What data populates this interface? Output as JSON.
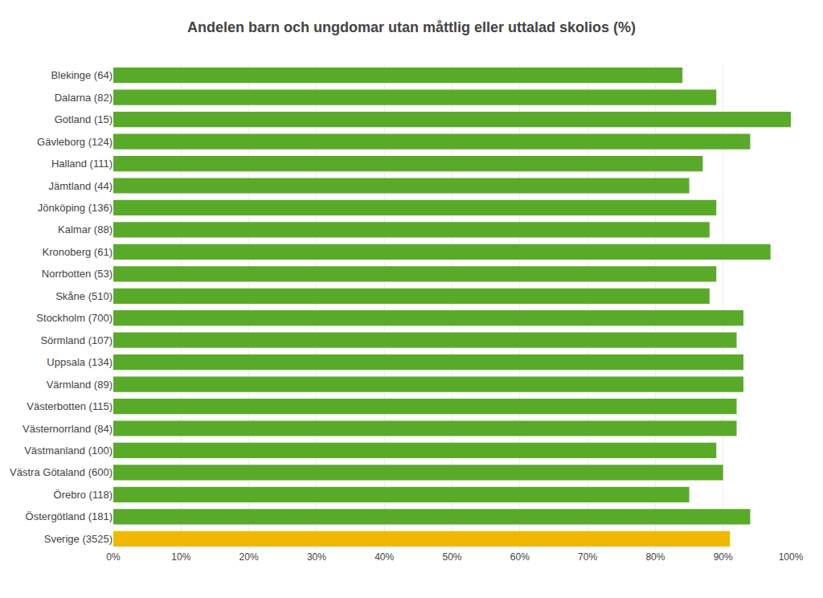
{
  "chart_data": {
    "type": "bar",
    "orientation": "horizontal",
    "title": "Andelen barn och ungdomar utan måttlig eller uttalad skolios (%)",
    "categories": [
      "Blekinge (64)",
      "Dalarna (82)",
      "Gotland (15)",
      "Gävleborg (124)",
      "Halland (111)",
      "Jämtland (44)",
      "Jönköping (136)",
      "Kalmar (88)",
      "Kronoberg (61)",
      "Norrbotten (53)",
      "Skåne (510)",
      "Stockholm (700)",
      "Sörmland (107)",
      "Uppsala (134)",
      "Värmland (89)",
      "Västerbotten (115)",
      "Västernorrland (84)",
      "Västmanland (100)",
      "Västra Götaland (600)",
      "Örebro (118)",
      "Östergötland (181)",
      "Sverige (3525)"
    ],
    "values": [
      84,
      89,
      100,
      94,
      87,
      85,
      89,
      88,
      97,
      89,
      88,
      93,
      92,
      93,
      93,
      92,
      92,
      89,
      90,
      85,
      94,
      91
    ],
    "colors": [
      "#5aaa2a",
      "#5aaa2a",
      "#5aaa2a",
      "#5aaa2a",
      "#5aaa2a",
      "#5aaa2a",
      "#5aaa2a",
      "#5aaa2a",
      "#5aaa2a",
      "#5aaa2a",
      "#5aaa2a",
      "#5aaa2a",
      "#5aaa2a",
      "#5aaa2a",
      "#5aaa2a",
      "#5aaa2a",
      "#5aaa2a",
      "#5aaa2a",
      "#5aaa2a",
      "#5aaa2a",
      "#5aaa2a",
      "#f0b800"
    ],
    "xlim": [
      0,
      100
    ],
    "xticks": [
      {
        "value": 0,
        "label": "0%"
      },
      {
        "value": 10,
        "label": "10%"
      },
      {
        "value": 20,
        "label": "20%"
      },
      {
        "value": 30,
        "label": "30%"
      },
      {
        "value": 40,
        "label": "40%"
      },
      {
        "value": 50,
        "label": "50%"
      },
      {
        "value": 60,
        "label": "60%"
      },
      {
        "value": 70,
        "label": "70%"
      },
      {
        "value": 80,
        "label": "80%"
      },
      {
        "value": 90,
        "label": "90%"
      },
      {
        "value": 100,
        "label": "100%"
      }
    ],
    "grid": true
  }
}
